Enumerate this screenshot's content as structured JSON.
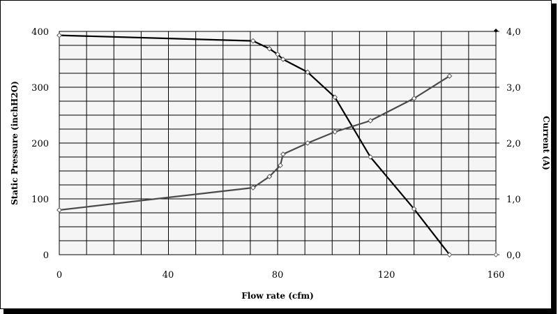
{
  "chart_data": {
    "type": "line",
    "xlabel": "Flow rate (cfm)",
    "ylabel_left": "Static Pressure (inchH2O)",
    "ylabel_right": "Current (A)",
    "xlim": [
      0,
      160
    ],
    "ylim_left": [
      0,
      400
    ],
    "ylim_right": [
      0,
      4
    ],
    "x_ticks": [
      "0",
      "40",
      "80",
      "120",
      "160"
    ],
    "y_left_ticks": [
      "0",
      "100",
      "200",
      "300",
      "400"
    ],
    "y_right_ticks": [
      "0,0",
      "1,0",
      "2,0",
      "3,0",
      "4,0"
    ],
    "grid": true,
    "series": [
      {
        "axis": "left",
        "color": "#000000",
        "points": [
          [
            0,
            393
          ],
          [
            71,
            383
          ],
          [
            77,
            369
          ],
          [
            80,
            359
          ],
          [
            82,
            350
          ],
          [
            91,
            327
          ],
          [
            101,
            282
          ],
          [
            114,
            175
          ],
          [
            130,
            82
          ],
          [
            143,
            0
          ]
        ]
      },
      {
        "axis": "right",
        "color": "#4a4a4a",
        "points": [
          [
            0,
            0.8
          ],
          [
            71,
            1.2
          ],
          [
            77,
            1.4
          ],
          [
            81,
            1.6
          ],
          [
            82,
            1.8
          ],
          [
            91,
            2.0
          ],
          [
            101,
            2.2
          ],
          [
            114,
            2.4
          ],
          [
            130,
            2.8
          ],
          [
            143,
            3.2
          ]
        ]
      }
    ]
  }
}
